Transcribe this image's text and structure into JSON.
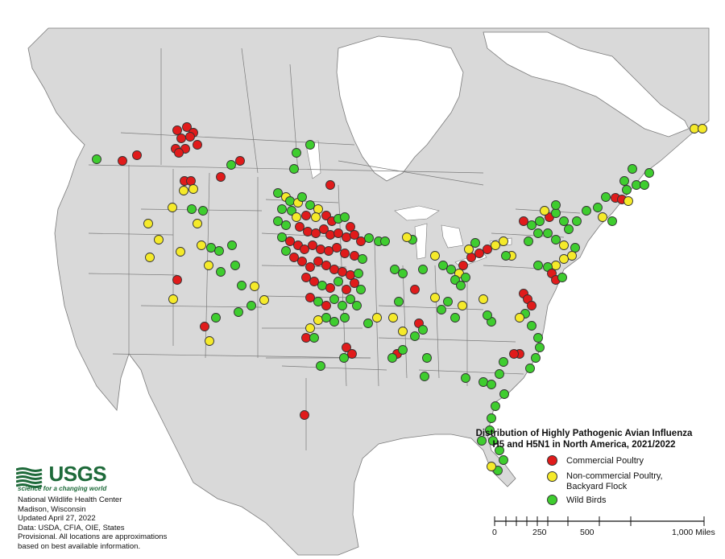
{
  "map": {
    "title_line1": "Distribution of Highly Pathogenic Avian Influenza",
    "title_line2": "H5 and H5N1 in North America, 2021/2022",
    "legend": [
      {
        "label": "Commercial Poultry",
        "color": "#e01b1b"
      },
      {
        "label": "Non-commercial Poultry,",
        "label2": "Backyard Flock",
        "color": "#f5ea2a"
      },
      {
        "label": "Wild Birds",
        "color": "#3fcd2f"
      }
    ],
    "logo": {
      "name": "USGS",
      "tagline": "science for a changing world"
    },
    "credits": [
      "National Wildlife Health Center",
      "Madison, Wisconsin",
      "Updated April 27, 2022",
      "Data: USDA, CFIA, OIE, States",
      "Provisional. All locations are approximations",
      "based on best available information."
    ],
    "scale": {
      "ticks": [
        "0",
        "250",
        "500",
        "1,000 Miles"
      ]
    },
    "colors": {
      "land": "#d9d9d9",
      "water": "#ffffff",
      "border": "#7a7a7a"
    }
  }
}
